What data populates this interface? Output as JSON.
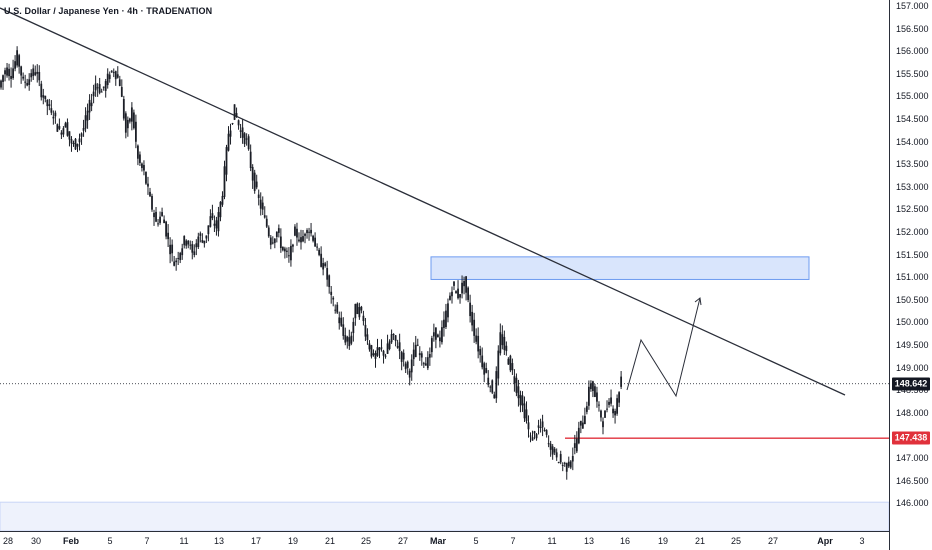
{
  "header": {
    "title": "U.S. Dollar / Japanese Yen · 4h · TRADENATION"
  },
  "chart_data": {
    "type": "candlestick",
    "title": "U.S. Dollar / Japanese Yen · 4h · TRADENATION",
    "symbol": "USDJPY",
    "timeframe": "4h",
    "source": "TRADENATION",
    "y_axis": {
      "side": "right",
      "ticks": [
        "157.000",
        "156.500",
        "156.000",
        "155.500",
        "155.000",
        "154.500",
        "154.000",
        "153.500",
        "153.000",
        "152.500",
        "152.000",
        "151.500",
        "151.000",
        "150.500",
        "150.000",
        "149.500",
        "149.000",
        "148.500",
        "148.000",
        "147.500",
        "147.000",
        "146.500",
        "146.000"
      ],
      "ylim": [
        145.7,
        157.2
      ]
    },
    "x_axis": {
      "ticks": [
        {
          "label": "28",
          "bold": false
        },
        {
          "label": "30",
          "bold": false
        },
        {
          "label": "Feb",
          "bold": true
        },
        {
          "label": "5",
          "bold": false
        },
        {
          "label": "7",
          "bold": false
        },
        {
          "label": "11",
          "bold": false
        },
        {
          "label": "13",
          "bold": false
        },
        {
          "label": "17",
          "bold": false
        },
        {
          "label": "19",
          "bold": false
        },
        {
          "label": "21",
          "bold": false
        },
        {
          "label": "25",
          "bold": false
        },
        {
          "label": "27",
          "bold": false
        },
        {
          "label": "Mar",
          "bold": true
        },
        {
          "label": "5",
          "bold": false
        },
        {
          "label": "7",
          "bold": false
        },
        {
          "label": "11",
          "bold": false
        },
        {
          "label": "13",
          "bold": false
        },
        {
          "label": "16",
          "bold": false
        },
        {
          "label": "19",
          "bold": false
        },
        {
          "label": "21",
          "bold": false
        },
        {
          "label": "25",
          "bold": false
        },
        {
          "label": "27",
          "bold": false
        },
        {
          "label": "Apr",
          "bold": true
        },
        {
          "label": "3",
          "bold": false
        }
      ]
    },
    "price_path": [
      [
        0,
        155.2
      ],
      [
        2,
        155.6
      ],
      [
        4,
        155.5
      ],
      [
        6,
        155.9
      ],
      [
        8,
        155.3
      ],
      [
        10,
        155.4
      ],
      [
        12,
        155.6
      ],
      [
        14,
        155.1
      ],
      [
        16,
        154.8
      ],
      [
        18,
        154.6
      ],
      [
        20,
        154.2
      ],
      [
        22,
        154.4
      ],
      [
        24,
        153.9
      ],
      [
        26,
        154.0
      ],
      [
        28,
        154.3
      ],
      [
        30,
        154.8
      ],
      [
        32,
        155.3
      ],
      [
        34,
        155.1
      ],
      [
        36,
        155.4
      ],
      [
        38,
        155.6
      ],
      [
        40,
        155.3
      ],
      [
        42,
        154.2
      ],
      [
        44,
        154.7
      ],
      [
        46,
        153.6
      ],
      [
        48,
        153.3
      ],
      [
        50,
        152.7
      ],
      [
        52,
        152.2
      ],
      [
        54,
        152.4
      ],
      [
        56,
        151.8
      ],
      [
        58,
        151.3
      ],
      [
        60,
        151.6
      ],
      [
        62,
        151.9
      ],
      [
        64,
        151.5
      ],
      [
        66,
        151.9
      ],
      [
        68,
        151.8
      ],
      [
        70,
        152.3
      ],
      [
        72,
        152.1
      ],
      [
        74,
        152.9
      ],
      [
        76,
        154.2
      ],
      [
        78,
        154.7
      ],
      [
        80,
        154.2
      ],
      [
        82,
        154.0
      ],
      [
        84,
        153.2
      ],
      [
        86,
        152.7
      ],
      [
        88,
        152.3
      ],
      [
        90,
        151.8
      ],
      [
        92,
        152.0
      ],
      [
        94,
        151.6
      ],
      [
        96,
        151.4
      ],
      [
        98,
        152.0
      ],
      [
        100,
        151.8
      ],
      [
        102,
        152.1
      ],
      [
        104,
        151.9
      ],
      [
        106,
        151.4
      ],
      [
        108,
        151.2
      ],
      [
        110,
        150.5
      ],
      [
        112,
        150.2
      ],
      [
        114,
        149.7
      ],
      [
        116,
        149.5
      ],
      [
        118,
        150.3
      ],
      [
        120,
        150.2
      ],
      [
        122,
        149.6
      ],
      [
        124,
        149.2
      ],
      [
        126,
        149.4
      ],
      [
        128,
        149.3
      ],
      [
        130,
        149.7
      ],
      [
        132,
        149.5
      ],
      [
        134,
        149.1
      ],
      [
        136,
        148.9
      ],
      [
        138,
        149.5
      ],
      [
        140,
        149.2
      ],
      [
        142,
        149.1
      ],
      [
        144,
        149.8
      ],
      [
        146,
        149.6
      ],
      [
        148,
        150.2
      ],
      [
        150,
        150.8
      ],
      [
        152,
        150.6
      ],
      [
        154,
        150.9
      ],
      [
        156,
        150.2
      ],
      [
        158,
        149.6
      ],
      [
        160,
        149.1
      ],
      [
        162,
        148.7
      ],
      [
        164,
        148.4
      ],
      [
        166,
        149.7
      ],
      [
        168,
        149.3
      ],
      [
        170,
        148.9
      ],
      [
        172,
        148.4
      ],
      [
        174,
        148.0
      ],
      [
        176,
        147.4
      ],
      [
        178,
        147.6
      ],
      [
        180,
        147.7
      ],
      [
        182,
        147.3
      ],
      [
        184,
        147.1
      ],
      [
        186,
        146.9
      ],
      [
        188,
        146.8
      ],
      [
        190,
        147.1
      ],
      [
        192,
        147.6
      ],
      [
        194,
        148.0
      ],
      [
        196,
        148.7
      ],
      [
        198,
        148.2
      ],
      [
        200,
        147.8
      ],
      [
        202,
        148.3
      ],
      [
        204,
        148.0
      ],
      [
        206,
        148.8
      ],
      [
        208,
        148.6
      ]
    ],
    "annotations": {
      "resistance_zone": {
        "top": 151.45,
        "bottom": 150.95,
        "color": "#d9e5fc",
        "border": "#6d9bf0"
      },
      "trendline": {
        "label": "descending trendline",
        "color": "#2a2e39"
      },
      "projection": "zigzag arrow pointing up",
      "current_price": {
        "value": "148.642",
        "color": "#131722"
      },
      "support_level": {
        "value": "147.438",
        "color": "#e0313b"
      },
      "lower_band": {
        "value": "146.000",
        "color": "#c9d6f7"
      }
    },
    "grid": false,
    "colors": {
      "candle": "#1b1e26",
      "axis_text": "#131722"
    }
  }
}
